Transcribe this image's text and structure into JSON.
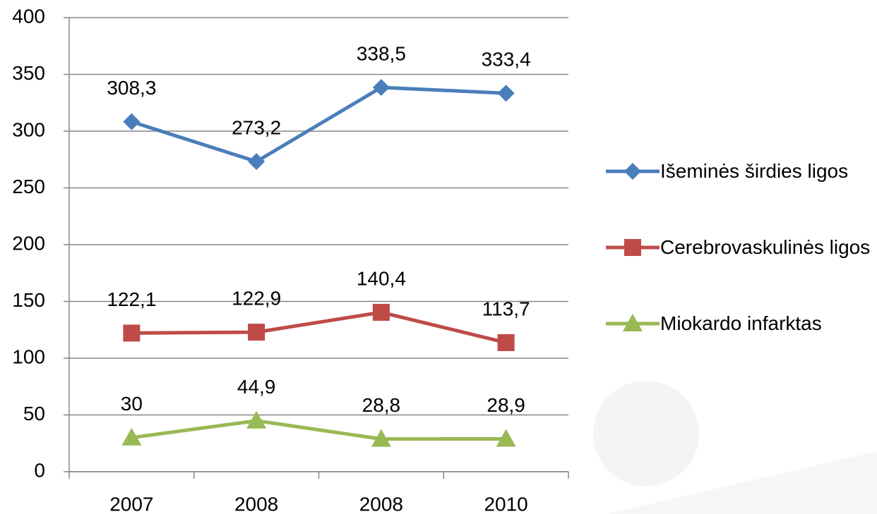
{
  "chart_data": {
    "type": "line",
    "categories": [
      "2007",
      "2008",
      "2008",
      "2010"
    ],
    "series": [
      {
        "name": "Išeminės širdies ligos",
        "color": "#4a7ebb",
        "marker": "diamond",
        "values": [
          308.3,
          273.2,
          338.5,
          333.4
        ],
        "value_labels": [
          "308,3",
          "273,2",
          "338,5",
          "333,4"
        ]
      },
      {
        "name": "Cerebrovaskulinės ligos",
        "color": "#be4b48",
        "marker": "square",
        "values": [
          122.1,
          122.9,
          140.4,
          113.7
        ],
        "value_labels": [
          "122,1",
          "122,9",
          "140,4",
          "113,7"
        ]
      },
      {
        "name": "Miokardo infarktas",
        "color": "#98b954",
        "marker": "triangle",
        "values": [
          30,
          44.9,
          28.8,
          28.9
        ],
        "value_labels": [
          "30",
          "44,9",
          "28,8",
          "28,9"
        ]
      }
    ],
    "ylim": [
      0,
      400
    ],
    "yticks": [
      0,
      50,
      100,
      150,
      200,
      250,
      300,
      350,
      400
    ],
    "grid": true,
    "legend_position": "right"
  }
}
